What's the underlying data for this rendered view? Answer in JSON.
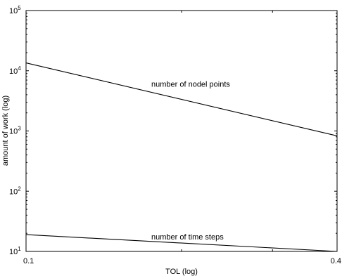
{
  "chart_data": {
    "type": "line",
    "title": "",
    "xlabel": "TOL (log)",
    "ylabel": "amount of work (log)",
    "x_scale": "log",
    "y_scale": "log",
    "xlim": [
      0.1,
      0.4
    ],
    "ylim": [
      10,
      100000
    ],
    "x_ticks": [
      {
        "value": 0.1,
        "label": "0.1"
      },
      {
        "value": 0.4,
        "label": "0.4"
      }
    ],
    "y_ticks": [
      {
        "value": 10,
        "base": "10",
        "exp": "1"
      },
      {
        "value": 100,
        "base": "10",
        "exp": "2"
      },
      {
        "value": 1000,
        "base": "10",
        "exp": "3"
      },
      {
        "value": 10000,
        "base": "10",
        "exp": "4"
      },
      {
        "value": 100000,
        "base": "10",
        "exp": "5"
      }
    ],
    "grid": false,
    "legend": "none",
    "series": [
      {
        "label": "number of nodel points",
        "label_at": {
          "x": 0.2,
          "y": 5400
        },
        "x": [
          0.1,
          0.4
        ],
        "y": [
          13500,
          830
        ]
      },
      {
        "label": "number of time steps",
        "label_at": {
          "x": 0.2,
          "y": 15.8
        },
        "x": [
          0.1,
          0.4
        ],
        "y": [
          19,
          10
        ]
      }
    ],
    "colors": {
      "line": "#000000",
      "axes": "#000000",
      "background": "#ffffff"
    }
  }
}
